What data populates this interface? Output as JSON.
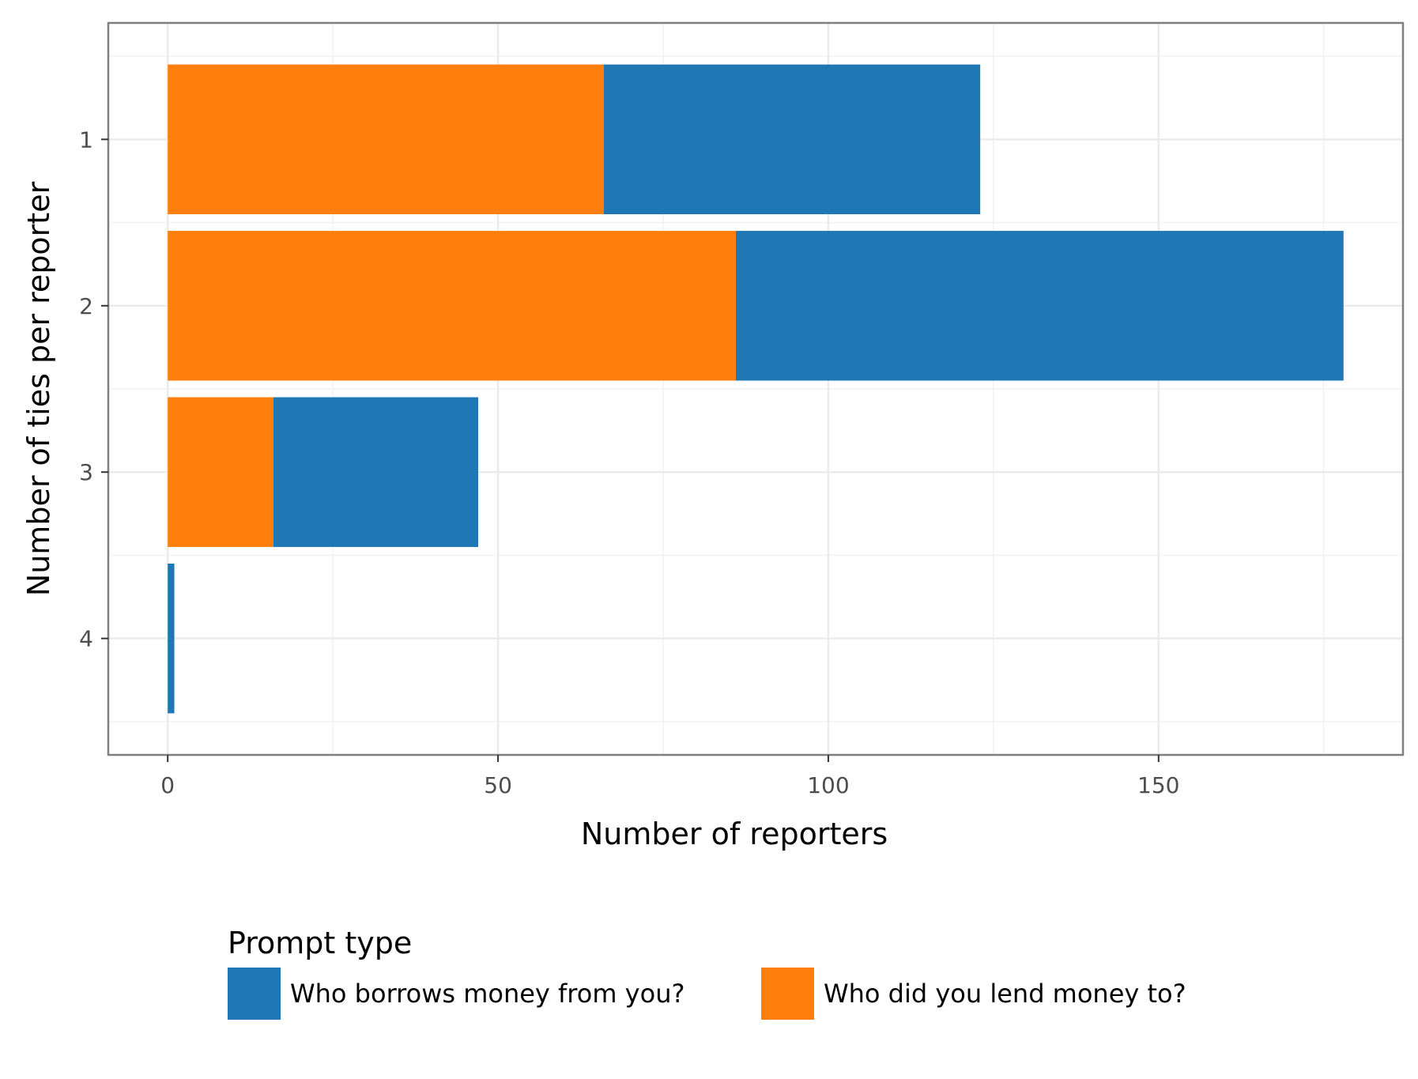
{
  "chart_data": {
    "type": "bar",
    "orientation": "horizontal",
    "stacked": true,
    "title": "",
    "xlabel": "Number of reporters",
    "ylabel": "Number of ties per reporter",
    "categories": [
      "1",
      "2",
      "3",
      "4"
    ],
    "series": [
      {
        "name": "Who did you lend money to?",
        "color": "#ff7f0e",
        "values": [
          66,
          86,
          16,
          0
        ]
      },
      {
        "name": "Who borrows money from you?",
        "color": "#1f77b4",
        "values": [
          57,
          92,
          31,
          1
        ]
      }
    ],
    "xticks": [
      0,
      50,
      100,
      150
    ],
    "xlim": [
      -9,
      187
    ],
    "grid": true,
    "legend": {
      "title": "Prompt type",
      "position": "bottom",
      "items": [
        {
          "label": "Who borrows money from you?",
          "color": "#1f77b4"
        },
        {
          "label": "Who did you lend money to?",
          "color": "#ff7f0e"
        }
      ]
    }
  }
}
